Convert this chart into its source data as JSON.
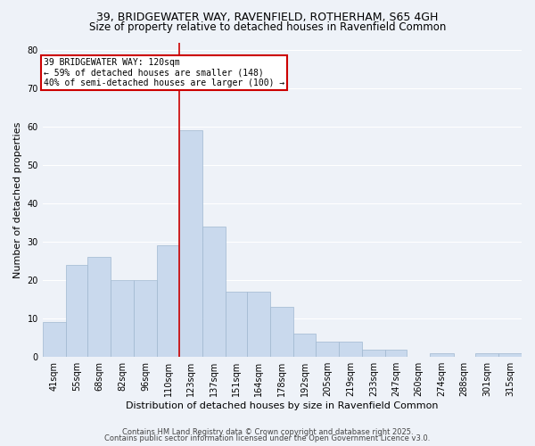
{
  "title_line1": "39, BRIDGEWATER WAY, RAVENFIELD, ROTHERHAM, S65 4GH",
  "title_line2": "Size of property relative to detached houses in Ravenfield Common",
  "xlabel": "Distribution of detached houses by size in Ravenfield Common",
  "ylabel": "Number of detached properties",
  "bar_edges": [
    41,
    55,
    68,
    82,
    96,
    110,
    123,
    137,
    151,
    164,
    178,
    192,
    205,
    219,
    233,
    247,
    260,
    274,
    288,
    301,
    315
  ],
  "bar_heights": [
    9,
    24,
    26,
    20,
    20,
    29,
    59,
    34,
    17,
    17,
    13,
    6,
    4,
    4,
    2,
    2,
    0,
    1,
    0,
    1,
    1
  ],
  "bar_color": "#c9d9ed",
  "bar_edge_color": "#a0b8d0",
  "red_line_x": 123,
  "ylim": [
    0,
    82
  ],
  "yticks": [
    0,
    10,
    20,
    30,
    40,
    50,
    60,
    70,
    80
  ],
  "annotation_text": "39 BRIDGEWATER WAY: 120sqm\n← 59% of detached houses are smaller (148)\n40% of semi-detached houses are larger (100) →",
  "annotation_box_color": "#ffffff",
  "annotation_border_color": "#cc0000",
  "footer_line1": "Contains HM Land Registry data © Crown copyright and database right 2025.",
  "footer_line2": "Contains public sector information licensed under the Open Government Licence v3.0.",
  "background_color": "#eef2f8",
  "plot_background_color": "#eef2f8",
  "grid_color": "#ffffff",
  "title_fontsize": 9,
  "subtitle_fontsize": 8.5,
  "tick_fontsize": 7,
  "ylabel_fontsize": 8,
  "xlabel_fontsize": 8,
  "footer_fontsize": 6
}
